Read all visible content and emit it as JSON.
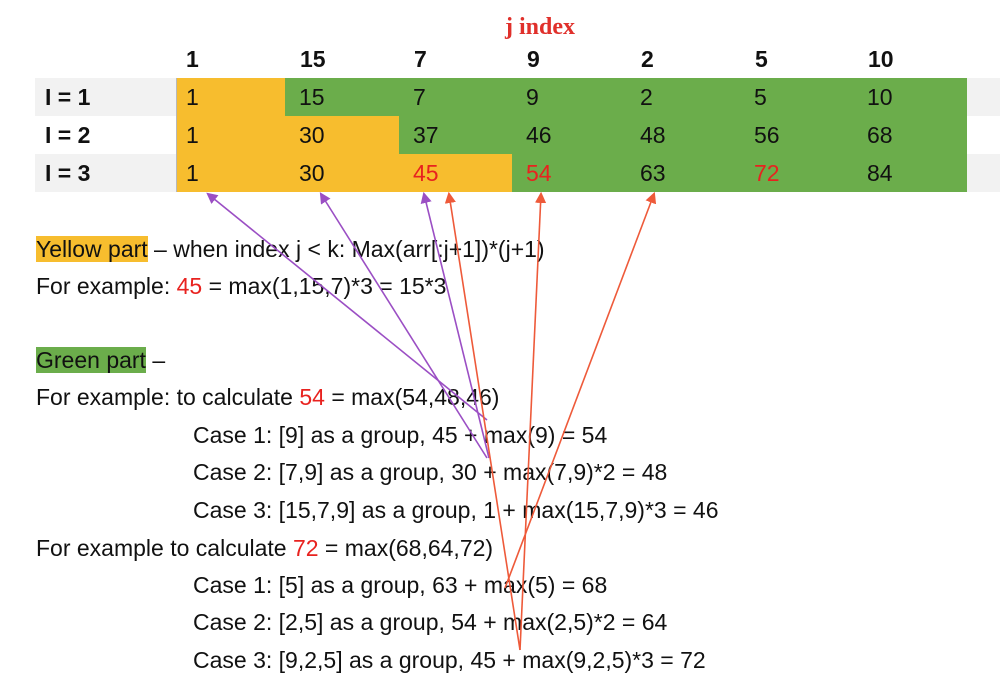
{
  "table": {
    "title": "j index",
    "headers": [
      "1",
      "15",
      "7",
      "9",
      "2",
      "5",
      "10"
    ],
    "rows": [
      {
        "label": "I = 1",
        "values": [
          "1",
          "15",
          "7",
          "9",
          "2",
          "5",
          "10"
        ]
      },
      {
        "label": "I = 2",
        "values": [
          "1",
          "30",
          "37",
          "46",
          "48",
          "56",
          "68"
        ]
      },
      {
        "label": "I = 3",
        "values": [
          "1",
          "30",
          "45",
          "54",
          "63",
          "72",
          "84"
        ]
      }
    ],
    "colors": {
      "yellow": "#f7bd2e",
      "green": "#6bad4b",
      "red_text": "#e8221f",
      "purple_arrow": "#9b4fc4",
      "red_arrow": "#ee5a3a"
    }
  },
  "text": {
    "yellow_label": "Yellow part",
    "yellow_rest": " – when index j < k: Max(arr[:j+1])*(j+1)",
    "ex1_prefix": "For example: ",
    "ex1_value": "45",
    "ex1_rest": " = max(1,15,7)*3 = 15*3",
    "green_label": "Green part",
    "green_rest": " –",
    "ex2_prefix": "For example: to calculate ",
    "ex2_value": "54",
    "ex2_rest": " = max(54,48,46)",
    "case_a1": "Case 1: [9] as a group, 45 + max(9) = 54",
    "case_a2": "Case 2: [7,9] as a group, 30 + max(7,9)*2 = 48",
    "case_a3": "Case 3: [15,7,9] as a group, 1 + max(15,7,9)*3 = 46",
    "ex3_prefix": "For example to calculate ",
    "ex3_value": "72",
    "ex3_rest": " = max(68,64,72)",
    "case_b1": "Case 1: [5] as a group, 63 + max(5) = 68",
    "case_b2": "Case 2: [2,5] as a group, 54 + max(2,5)*2 = 64",
    "case_b3": "Case 3: [9,2,5] as a group, 45 + max(9,2,5)*3 = 72"
  }
}
